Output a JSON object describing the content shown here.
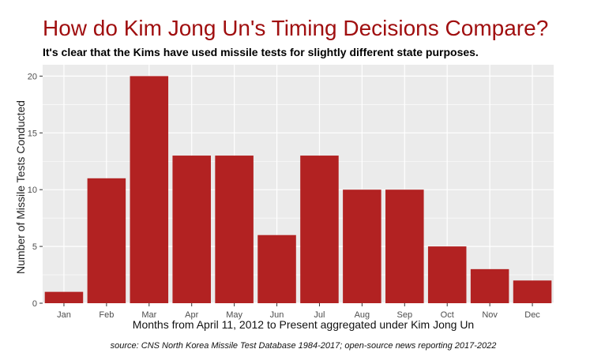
{
  "chart_data": {
    "type": "bar",
    "title": "How do Kim Jong Un's Timing Decisions Compare?",
    "subtitle": "It's clear that the Kims have used missile tests for slightly different state purposes.",
    "xlabel": "Months from April 11, 2012 to Present aggregated under Kim Jong Un",
    "ylabel": "Number of Missile Tests Conducted",
    "caption": "source: CNS North Korea Missile Test Database 1984-2017; open-source news reporting 2017-2022",
    "categories": [
      "Jan",
      "Feb",
      "Mar",
      "Apr",
      "May",
      "Jun",
      "Jul",
      "Aug",
      "Sep",
      "Oct",
      "Nov",
      "Dec"
    ],
    "values": [
      1,
      11,
      20,
      13,
      13,
      6,
      13,
      10,
      10,
      5,
      3,
      2
    ],
    "ylim": [
      0,
      21
    ],
    "yticks": [
      0,
      5,
      10,
      15,
      20
    ],
    "grid": true,
    "colors": {
      "bar": "#b22222",
      "panel": "#ebebeb",
      "grid": "#ffffff",
      "title": "#a00f10"
    }
  }
}
